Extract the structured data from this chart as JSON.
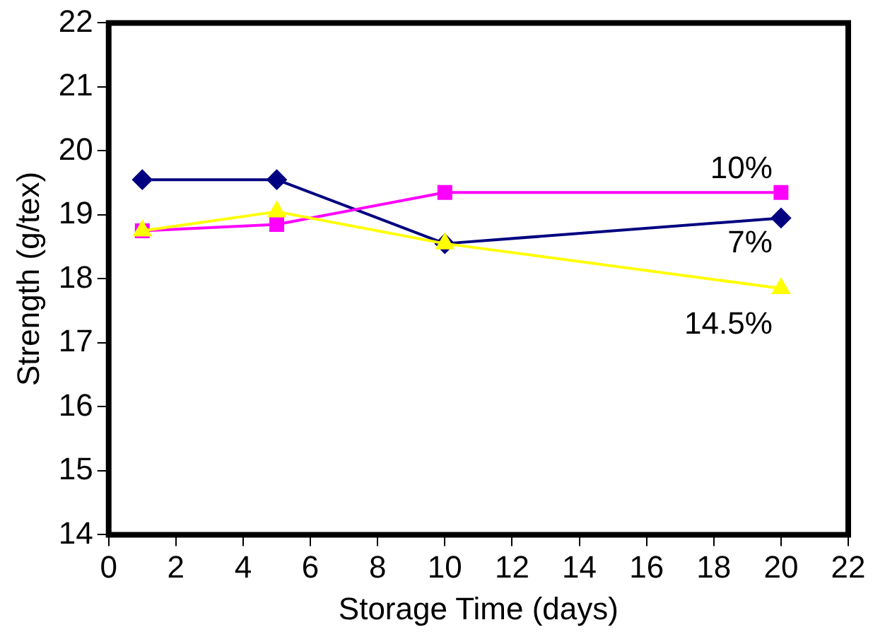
{
  "chart_data": {
    "type": "line",
    "xlabel": "Storage Time (days)",
    "ylabel": "Strength (g/tex)",
    "x": [
      1,
      5,
      10,
      20
    ],
    "series": [
      {
        "name": "7%",
        "color": "#000080",
        "marker": "diamond",
        "values": [
          19.55,
          19.55,
          18.55,
          18.95
        ]
      },
      {
        "name": "10%",
        "color": "#ff00ff",
        "marker": "square",
        "values": [
          18.75,
          18.85,
          19.35,
          19.35
        ]
      },
      {
        "name": "14.5%",
        "color": "#ffff00",
        "marker": "triangle",
        "values": [
          18.75,
          19.05,
          18.55,
          17.85
        ]
      }
    ],
    "xlim": [
      0,
      22
    ],
    "xticks": [
      0,
      2,
      4,
      6,
      8,
      10,
      12,
      14,
      16,
      18,
      20,
      22
    ],
    "ylim": [
      14,
      22
    ],
    "yticks": [
      14,
      15,
      16,
      17,
      18,
      19,
      20,
      21,
      22
    ],
    "grid": false,
    "legend": false
  }
}
